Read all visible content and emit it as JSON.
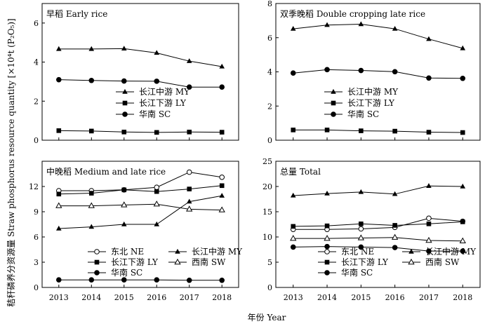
{
  "figure": {
    "ylabel": "秸秆磷养分资源量 Straw phosphorus resource quantity [×10⁴t (P₂O₅)]",
    "xlabel": "年份 Year"
  },
  "chart_data": [
    {
      "type": "line",
      "title": "早稻 Early rice",
      "x": [
        2013,
        2014,
        2015,
        2016,
        2017,
        2018
      ],
      "yticks": [
        0,
        2,
        4,
        6
      ],
      "ylim": [
        0,
        7
      ],
      "legend_cols": 1,
      "series": [
        {
          "name": "长江中游 MY",
          "marker": "triangle",
          "values": [
            4.67,
            4.67,
            4.69,
            4.47,
            4.05,
            3.77
          ]
        },
        {
          "name": "长江下游 LY",
          "marker": "square",
          "values": [
            0.49,
            0.47,
            0.42,
            0.4,
            0.42,
            0.41
          ]
        },
        {
          "name": "华南 SC",
          "marker": "circle",
          "values": [
            3.1,
            3.06,
            3.03,
            3.02,
            2.72,
            2.72
          ]
        }
      ]
    },
    {
      "type": "line",
      "title": "双季晚稻 Double cropping late rice",
      "x": [
        2013,
        2014,
        2015,
        2016,
        2017,
        2018
      ],
      "yticks": [
        0,
        2,
        4,
        6,
        8
      ],
      "ylim": [
        0,
        8
      ],
      "legend_cols": 1,
      "series": [
        {
          "name": "长江中游 MY",
          "marker": "triangle",
          "values": [
            6.52,
            6.74,
            6.79,
            6.52,
            5.92,
            5.38
          ]
        },
        {
          "name": "长江下游 LY",
          "marker": "square",
          "values": [
            0.6,
            0.6,
            0.55,
            0.53,
            0.47,
            0.45
          ]
        },
        {
          "name": "华南 SC",
          "marker": "circle",
          "values": [
            3.93,
            4.13,
            4.08,
            4.01,
            3.64,
            3.62
          ]
        }
      ]
    },
    {
      "type": "line",
      "title": "中晚稻 Medium and late rice",
      "x": [
        2013,
        2014,
        2015,
        2016,
        2017,
        2018
      ],
      "yticks": [
        0,
        3,
        6,
        9,
        12
      ],
      "ylim": [
        0,
        15
      ],
      "legend_cols": 2,
      "series": [
        {
          "name": "东北 NE",
          "marker": "circle-open",
          "values": [
            11.5,
            11.5,
            11.6,
            11.9,
            13.7,
            13.1
          ]
        },
        {
          "name": "长江中游 MY",
          "marker": "triangle",
          "values": [
            7.0,
            7.2,
            7.5,
            7.5,
            10.2,
            10.9
          ]
        },
        {
          "name": "长江下游 LY",
          "marker": "square",
          "values": [
            11.1,
            11.2,
            11.6,
            11.4,
            11.7,
            12.1
          ]
        },
        {
          "name": "西南 SW",
          "marker": "triangle-open",
          "values": [
            9.7,
            9.7,
            9.8,
            9.9,
            9.3,
            9.2
          ]
        },
        {
          "name": "华南 SC",
          "marker": "circle",
          "values": [
            0.9,
            0.9,
            0.9,
            0.9,
            0.85,
            0.85
          ]
        }
      ]
    },
    {
      "type": "line",
      "title": "总量 Total",
      "x": [
        2013,
        2014,
        2015,
        2016,
        2017,
        2018
      ],
      "yticks": [
        0,
        5,
        10,
        15,
        20,
        25
      ],
      "ylim": [
        0,
        25
      ],
      "legend_cols": 2,
      "series": [
        {
          "name": "东北 NE",
          "marker": "circle-open",
          "values": [
            11.5,
            11.5,
            11.6,
            11.9,
            13.7,
            13.1
          ]
        },
        {
          "name": "长江中游 MY",
          "marker": "triangle",
          "values": [
            18.2,
            18.6,
            18.9,
            18.5,
            20.1,
            20.0
          ]
        },
        {
          "name": "长江下游 LY",
          "marker": "square",
          "values": [
            12.1,
            12.2,
            12.6,
            12.3,
            12.6,
            13.0
          ]
        },
        {
          "name": "西南 SW",
          "marker": "triangle-open",
          "values": [
            9.7,
            9.7,
            9.8,
            9.9,
            9.3,
            9.2
          ]
        },
        {
          "name": "华南 SC",
          "marker": "circle",
          "values": [
            8.0,
            8.1,
            8.0,
            7.9,
            7.2,
            7.2
          ]
        }
      ]
    }
  ]
}
